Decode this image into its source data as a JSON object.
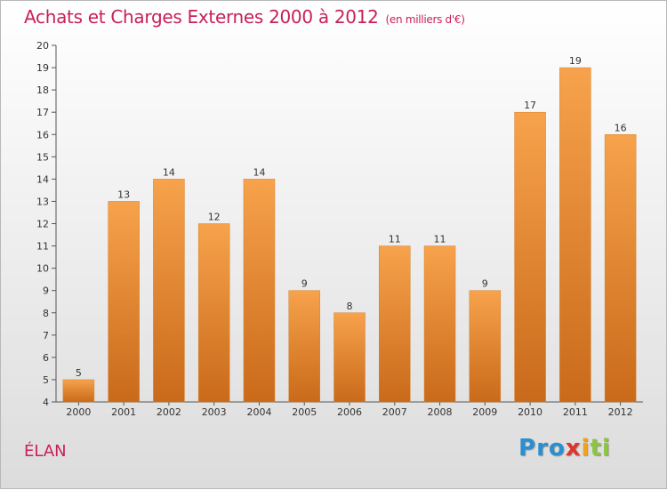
{
  "header": {
    "title": "Achats et Charges Externes 2000 à 2012",
    "unit": "(en milliers d'€)"
  },
  "footer": {
    "commune": "ÉLAN",
    "brand_letters": [
      {
        "ch": "P",
        "color": "#2a8fd0"
      },
      {
        "ch": "r",
        "color": "#2a8fd0"
      },
      {
        "ch": "o",
        "color": "#2a8fd0"
      },
      {
        "ch": "x",
        "color": "#e0342a"
      },
      {
        "ch": "i",
        "color": "#f2a21c"
      },
      {
        "ch": "t",
        "color": "#8cc63f"
      },
      {
        "ch": "i",
        "color": "#8cc63f"
      }
    ]
  },
  "chart_data": {
    "type": "bar",
    "title": "Achats et Charges Externes 2000 à 2012",
    "subtitle": "(en milliers d'€)",
    "categories": [
      "2000",
      "2001",
      "2002",
      "2003",
      "2004",
      "2005",
      "2006",
      "2007",
      "2008",
      "2009",
      "2010",
      "2011",
      "2012"
    ],
    "values": [
      5,
      13,
      14,
      12,
      14,
      9,
      8,
      11,
      11,
      9,
      17,
      19,
      16
    ],
    "ylim": [
      4,
      20
    ],
    "yticks": [
      4,
      5,
      6,
      7,
      8,
      9,
      10,
      11,
      12,
      13,
      14,
      15,
      16,
      17,
      18,
      19,
      20
    ],
    "grid": false,
    "bar_color": "#f09a3e"
  }
}
